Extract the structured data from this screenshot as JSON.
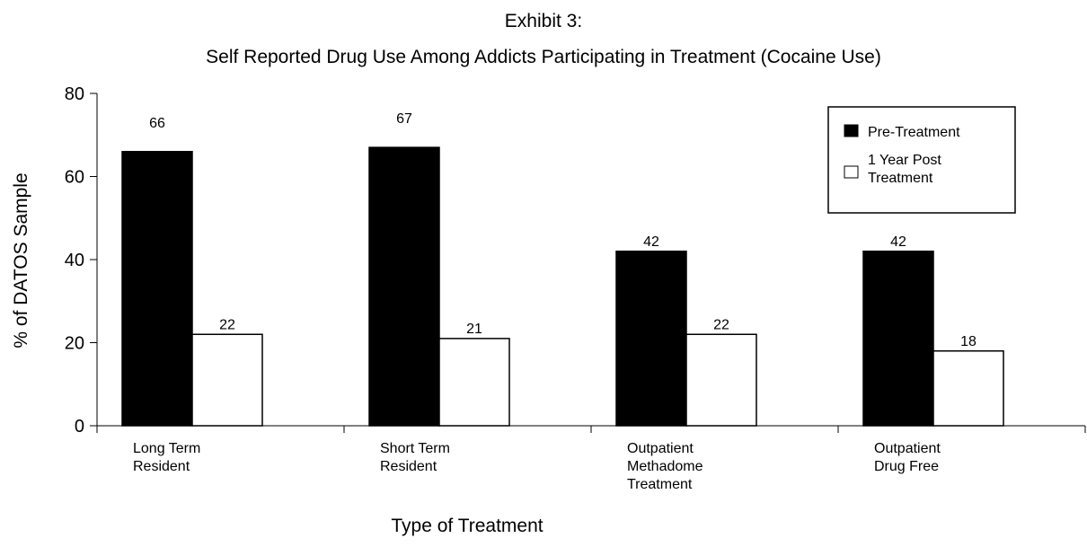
{
  "chart_data": {
    "type": "bar",
    "title": "Exhibit 3:",
    "subtitle": "Self Reported Drug Use Among Addicts Participating in Treatment (Cocaine Use)",
    "xlabel": "Type of Treatment",
    "ylabel": "% of DATOS Sample",
    "ylim": [
      0,
      80
    ],
    "yticks": [
      0,
      20,
      40,
      60,
      80
    ],
    "categories": [
      [
        "Long Term",
        "Resident"
      ],
      [
        "Short Term",
        "Resident"
      ],
      [
        "Outpatient",
        "Methadome",
        "Treatment"
      ],
      [
        "Outpatient",
        "Drug Free"
      ]
    ],
    "series": [
      {
        "name": "Pre-Treatment",
        "values": [
          66,
          67,
          42,
          42
        ],
        "color": "#000000"
      },
      {
        "name_lines": [
          "1 Year Post",
          "Treatment"
        ],
        "values": [
          22,
          21,
          22,
          18
        ],
        "color": "#ffffff"
      }
    ],
    "grid": false,
    "legend": {
      "placement": "top-right"
    }
  }
}
